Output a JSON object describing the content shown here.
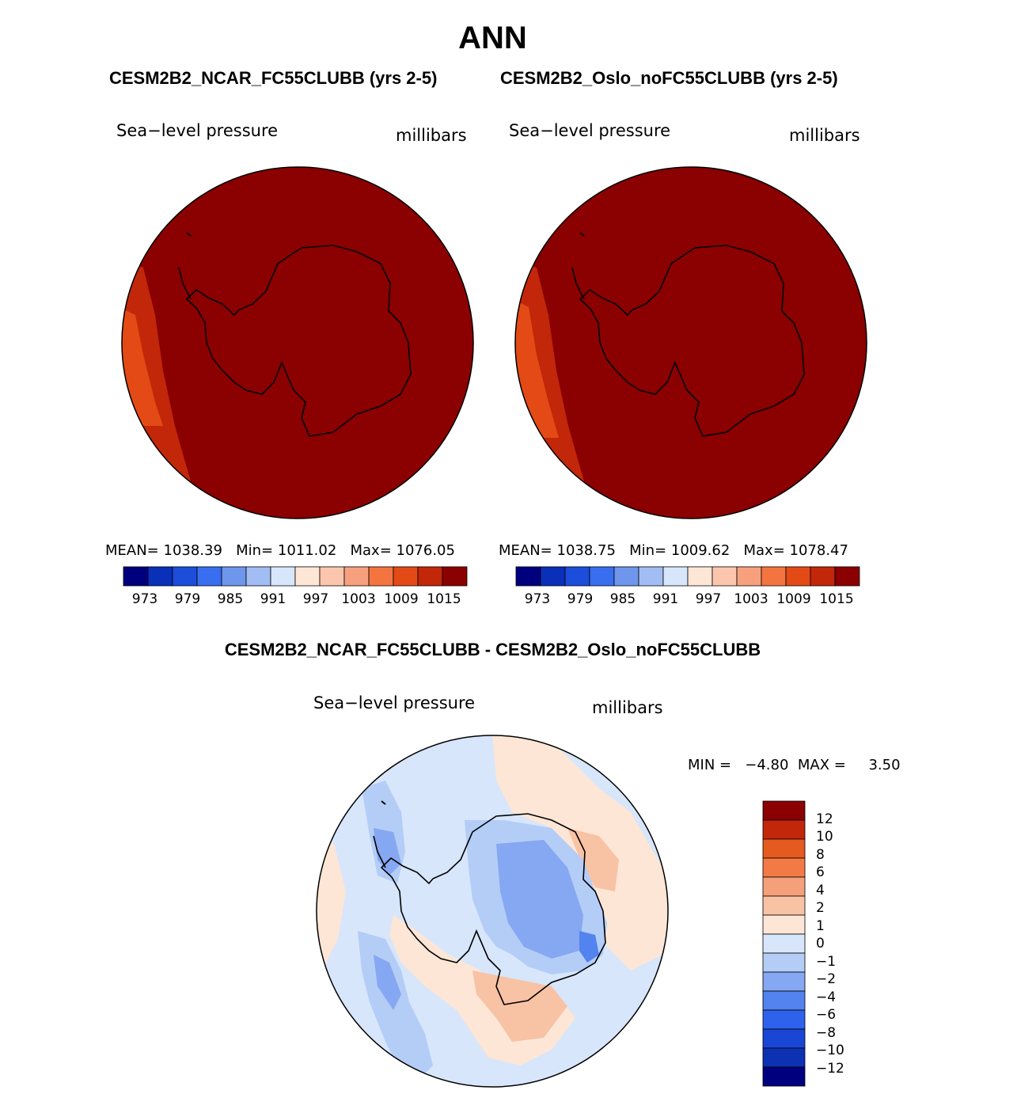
{
  "title": "ANN",
  "colors": {
    "abs_scale": [
      "#00007f",
      "#0a2fb8",
      "#1c4ddb",
      "#3a6ef0",
      "#6e96ec",
      "#a2bdf3",
      "#d7e6fb",
      "#fde6d6",
      "#fbc6ad",
      "#f7a07e",
      "#f4743f",
      "#e44a15",
      "#c2270a",
      "#8b0000"
    ],
    "diff_scale": [
      "#00007f",
      "#0c31b3",
      "#1a46d6",
      "#2f62ec",
      "#5283ee",
      "#86a7f1",
      "#b3cdf7",
      "#d7e6fb",
      "#fde6d6",
      "#f8c2a4",
      "#f4a07a",
      "#f47a45",
      "#e55a1e",
      "#c2270a",
      "#8b0000"
    ]
  },
  "panels": [
    {
      "case_title": "CESM2B2_NCAR_FC55CLUBB (yrs 2-5)",
      "field_label": "Sea−level pressure",
      "units_label": "millibars",
      "stats": {
        "mean_label": "MEAN=",
        "mean": "1038.39",
        "min_label": "Min=",
        "min": "1011.02",
        "max_label": "Max=",
        "max": "1076.05"
      },
      "colorbar_ticks": [
        "973",
        "979",
        "985",
        "991",
        "997",
        "1003",
        "1009",
        "1015"
      ]
    },
    {
      "case_title": "CESM2B2_Oslo_noFC55CLUBB (yrs 2-5)",
      "field_label": "Sea−level pressure",
      "units_label": "millibars",
      "stats": {
        "mean_label": "MEAN=",
        "mean": "1038.75",
        "min_label": "Min=",
        "min": "1009.62",
        "max_label": "Max=",
        "max": "1078.47"
      },
      "colorbar_ticks": [
        "973",
        "979",
        "985",
        "991",
        "997",
        "1003",
        "1009",
        "1015"
      ]
    }
  ],
  "difference": {
    "title": "CESM2B2_NCAR_FC55CLUBB - CESM2B2_Oslo_noFC55CLUBB",
    "field_label": "Sea−level pressure",
    "units_label": "millibars",
    "minmax_text": "MIN =   −4.80  MAX =     3.50",
    "colorbar_ticks": [
      "12",
      "10",
      "8",
      "6",
      "4",
      "2",
      "1",
      "0",
      "−1",
      "−2",
      "−4",
      "−6",
      "−8",
      "−10",
      "−12"
    ]
  },
  "chart_data": [
    {
      "type": "heatmap",
      "projection": "south-polar stereographic",
      "title": "CESM2B2_NCAR_FC55CLUBB (yrs 2-5)",
      "variable": "Sea-level pressure",
      "units": "millibars",
      "mean": 1038.39,
      "min": 1011.02,
      "max": 1076.05,
      "contour_levels": [
        973,
        976,
        979,
        982,
        985,
        988,
        991,
        994,
        997,
        1000,
        1003,
        1006,
        1009,
        1012,
        1015
      ]
    },
    {
      "type": "heatmap",
      "projection": "south-polar stereographic",
      "title": "CESM2B2_Oslo_noFC55CLUBB (yrs 2-5)",
      "variable": "Sea-level pressure",
      "units": "millibars",
      "mean": 1038.75,
      "min": 1009.62,
      "max": 1078.47,
      "contour_levels": [
        973,
        976,
        979,
        982,
        985,
        988,
        991,
        994,
        997,
        1000,
        1003,
        1006,
        1009,
        1012,
        1015
      ]
    },
    {
      "type": "heatmap",
      "projection": "south-polar stereographic",
      "title": "CESM2B2_NCAR_FC55CLUBB - CESM2B2_Oslo_noFC55CLUBB",
      "variable": "Sea-level pressure",
      "units": "millibars",
      "min": -4.8,
      "max": 3.5,
      "contour_levels": [
        -12,
        -10,
        -8,
        -6,
        -4,
        -2,
        -1,
        0,
        1,
        2,
        4,
        6,
        8,
        10,
        12
      ]
    }
  ]
}
